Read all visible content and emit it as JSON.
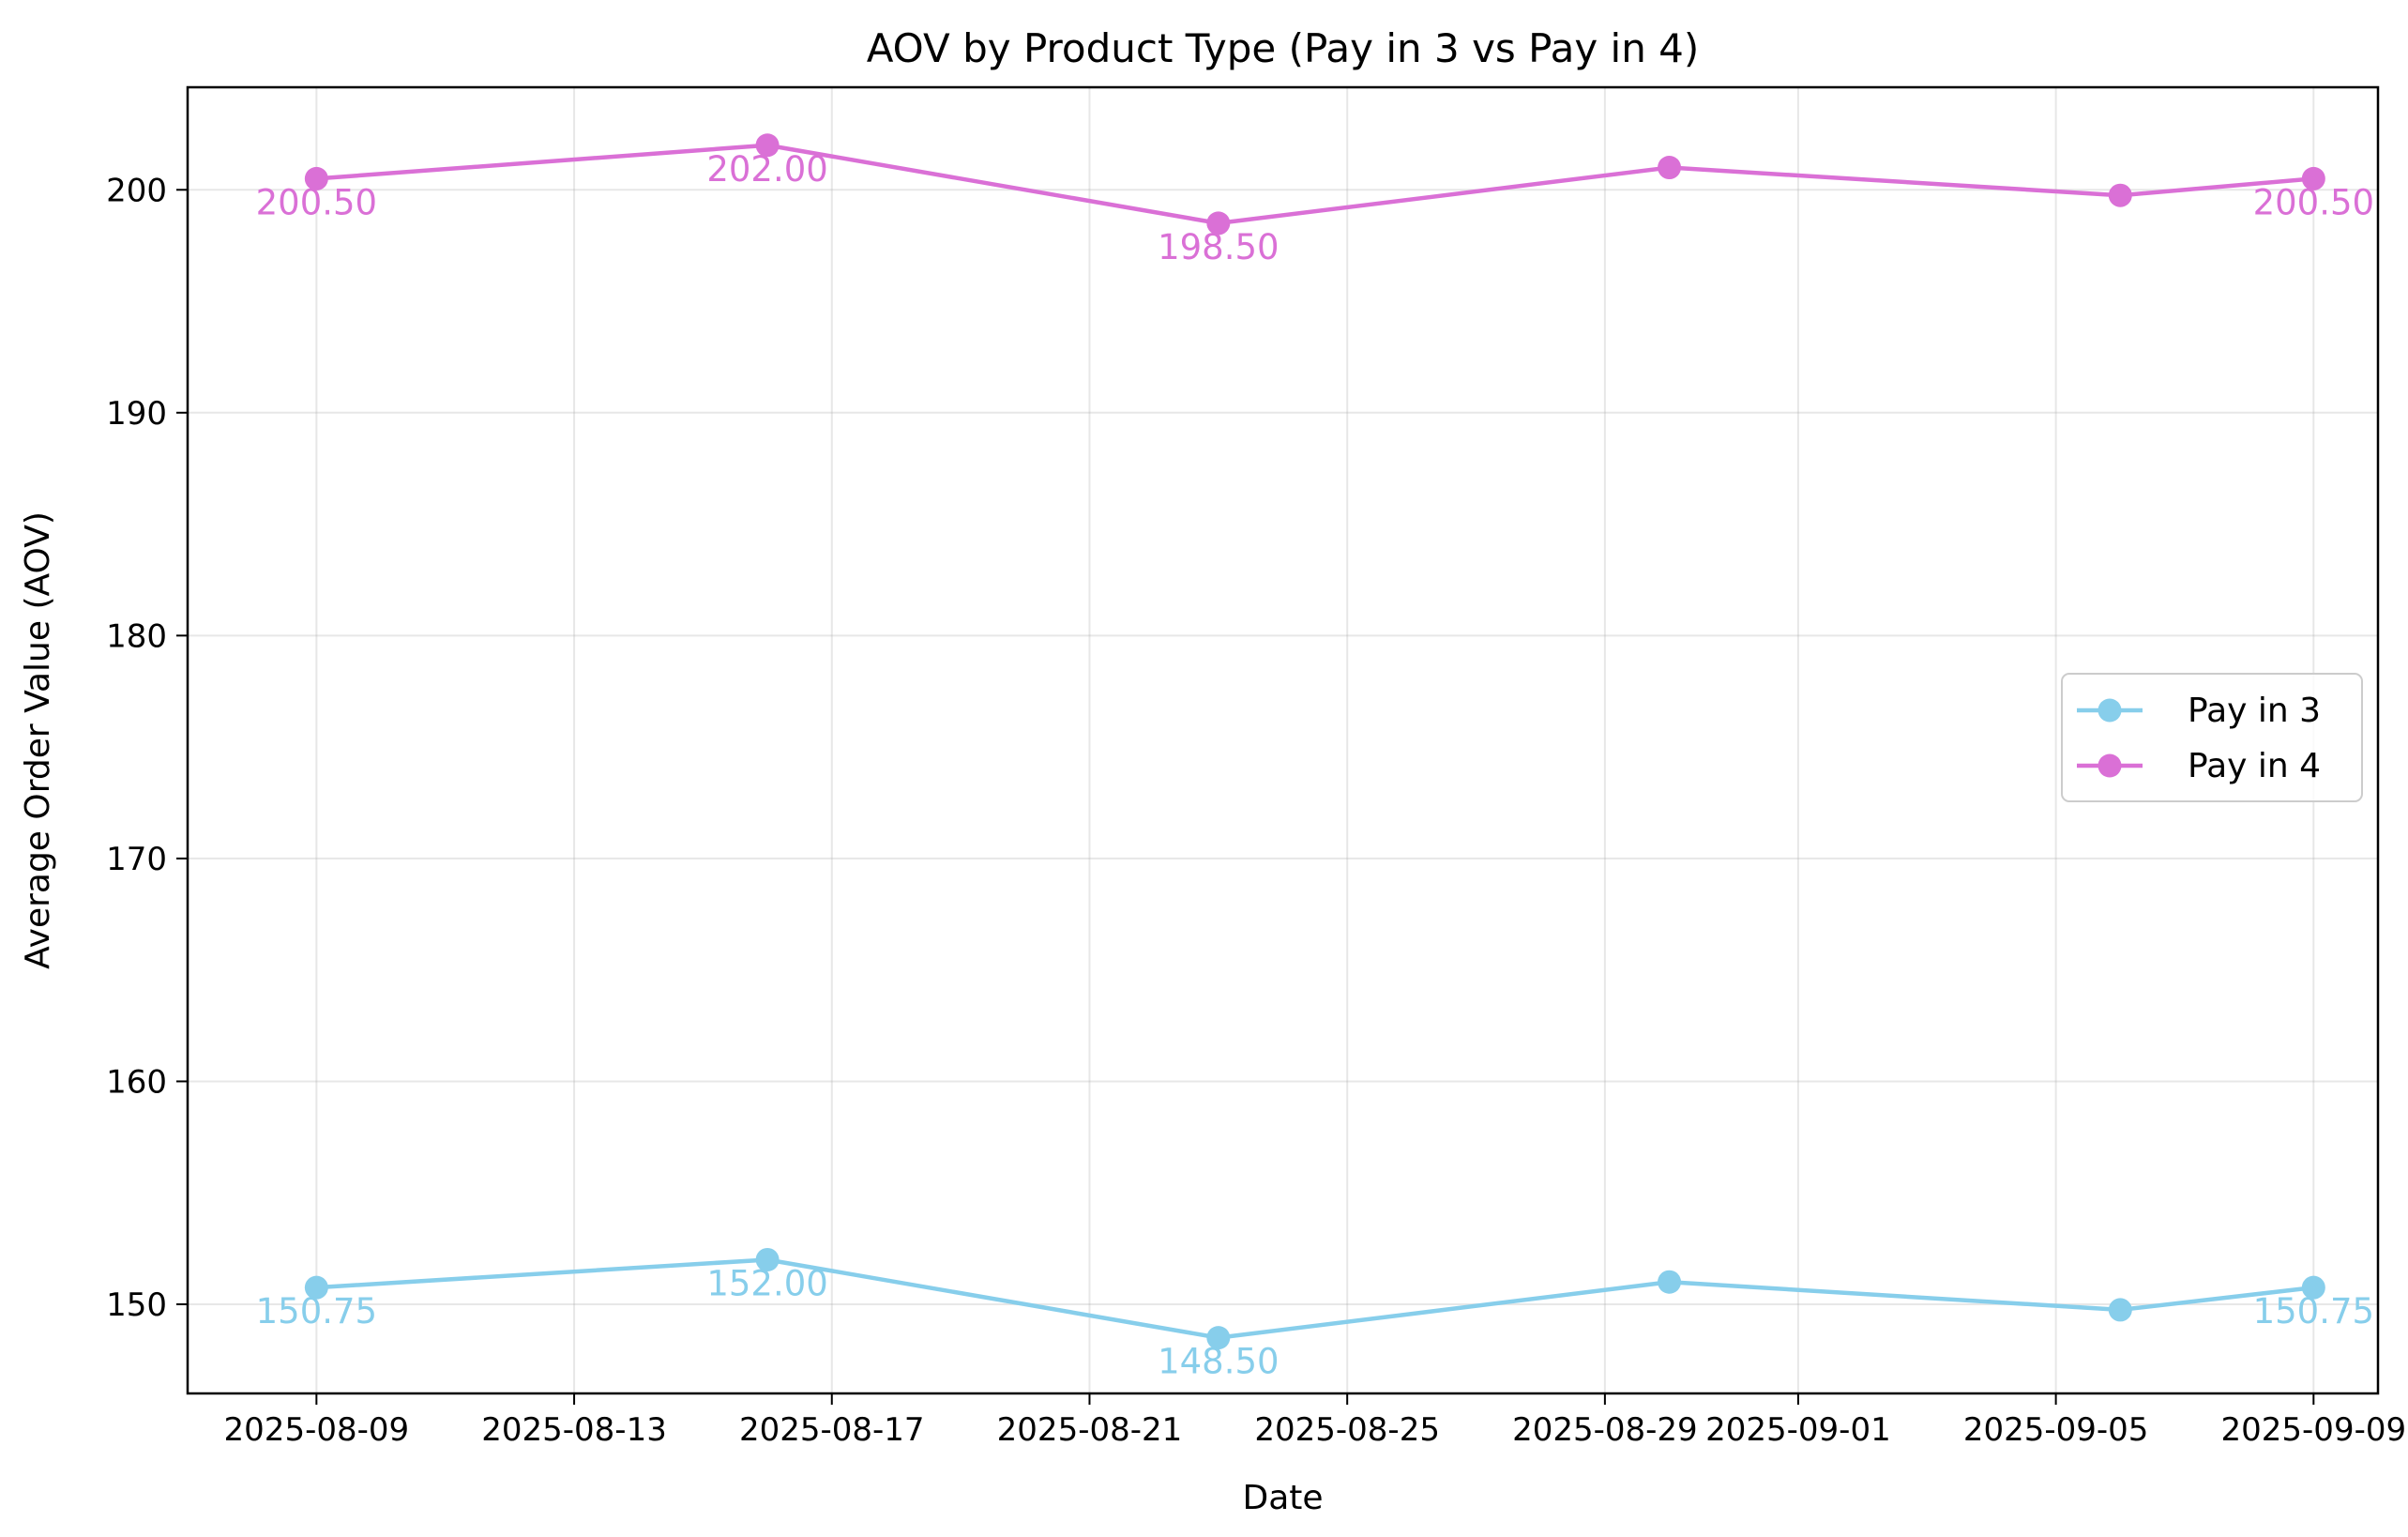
{
  "chart_data": {
    "type": "line",
    "title": "AOV by Product Type (Pay in 3 vs Pay in 4)",
    "xlabel": "Date",
    "ylabel": "Average Order Value (AOV)",
    "x": [
      "2025-08-09",
      "2025-08-16",
      "2025-08-23",
      "2025-08-30",
      "2025-09-06",
      "2025-09-09"
    ],
    "x_ticks": [
      "2025-08-09",
      "2025-08-13",
      "2025-08-17",
      "2025-08-21",
      "2025-08-25",
      "2025-08-29",
      "2025-09-01",
      "2025-09-05",
      "2025-09-09"
    ],
    "y_ticks": [
      150,
      160,
      170,
      180,
      190,
      200
    ],
    "xlim": [
      "2025-08-07",
      "2025-09-10"
    ],
    "ylim": [
      146,
      204.6
    ],
    "grid": true,
    "legend_position": "center-right",
    "series": [
      {
        "name": "Pay in 3",
        "color": "#87ceeb",
        "values": [
          150.75,
          152.0,
          148.5,
          151.0,
          149.75,
          150.75
        ],
        "labels": [
          "150.75",
          "152.00",
          "148.50",
          "",
          "",
          "150.75"
        ]
      },
      {
        "name": "Pay in 4",
        "color": "#da70d6",
        "values": [
          200.5,
          202.0,
          198.5,
          201.0,
          199.75,
          200.5
        ],
        "labels": [
          "200.50",
          "202.00",
          "198.50",
          "",
          "",
          "200.50"
        ]
      }
    ]
  }
}
